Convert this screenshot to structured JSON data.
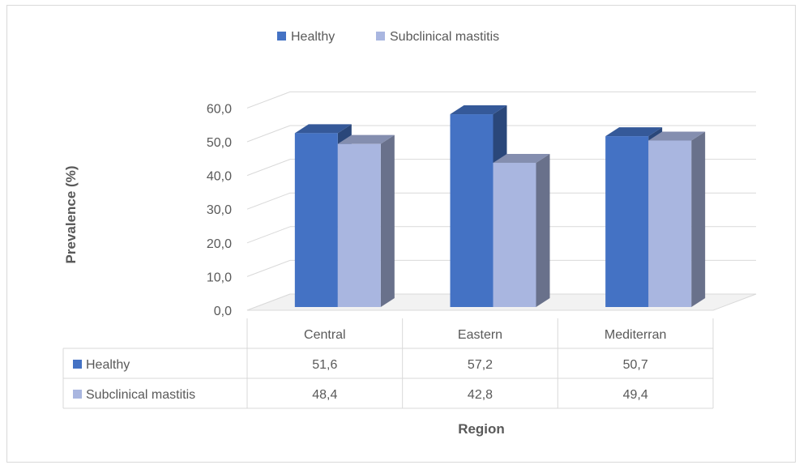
{
  "chart_data": {
    "type": "bar",
    "title": "",
    "xlabel": "Region",
    "ylabel": "Prevalence  (%)",
    "categories": [
      "Central",
      "Eastern",
      "Mediterran"
    ],
    "series": [
      {
        "name": "Healthy",
        "values": [
          51.6,
          57.2,
          50.7
        ],
        "labels": [
          "51,6",
          "57,2",
          "50,7"
        ],
        "color": "#4472c4"
      },
      {
        "name": "Subclinical mastitis",
        "values": [
          48.4,
          42.8,
          49.4
        ],
        "labels": [
          "48,4",
          "42,8",
          "49,4"
        ],
        "color": "#a9b6e0"
      }
    ],
    "ylim": [
      0,
      60
    ],
    "yticks": [
      0,
      10,
      20,
      30,
      40,
      50,
      60
    ],
    "ytick_labels": [
      "0,0",
      "10,0",
      "20,0",
      "30,0",
      "40,0",
      "50,0",
      "60,0"
    ],
    "grid": true,
    "legend": "top-center",
    "data_table": true,
    "style": "3d-clustered-column"
  }
}
